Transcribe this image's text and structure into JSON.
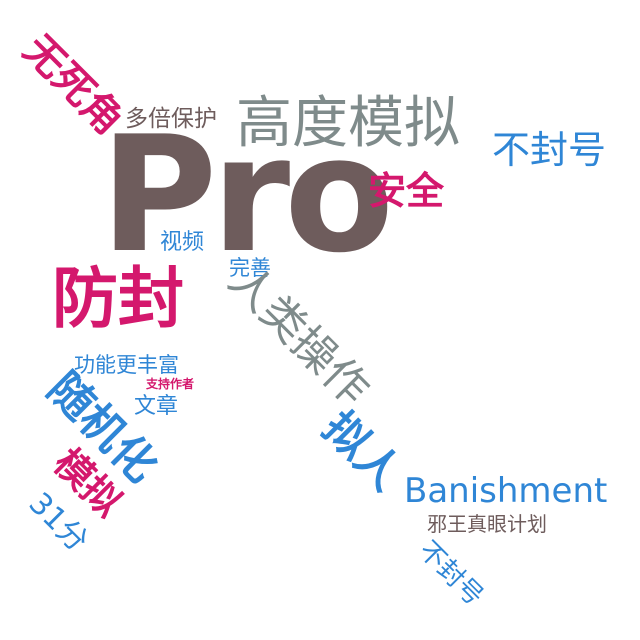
{
  "colors": {
    "gray": "#7f8b8b",
    "brown": "#6e5c5c",
    "magenta": "#d4186d",
    "blue": "#2f86d6"
  },
  "words": {
    "pro": "Pro",
    "anti_ban": "防封",
    "high_sim": "高度模拟",
    "no_dead_angle": "无死角",
    "multi_protect": "多倍保护",
    "no_ban_1": "不封号",
    "safe": "安全",
    "video": "视频",
    "perfect": "完善",
    "human_op": "人类操作",
    "richer": "功能更丰富",
    "support_author": "支持作者",
    "article": "文章",
    "random": "随机化",
    "simulate": "模拟",
    "thirty_one": "31分",
    "personify": "拟人",
    "banishment": "Banishment",
    "evil_eye": "邪王真眼计划",
    "no_ban_2": "不封号"
  }
}
